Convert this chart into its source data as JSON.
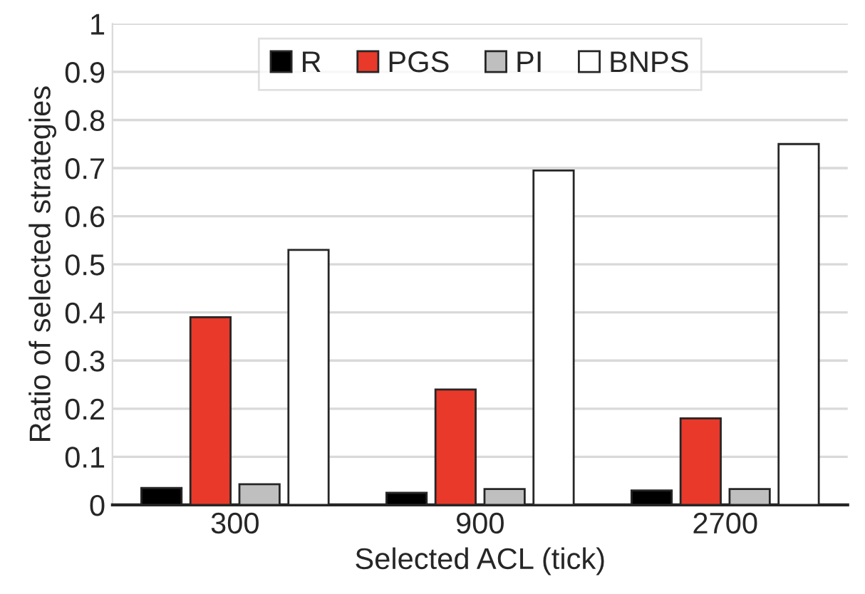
{
  "chart_data": {
    "type": "bar",
    "xlabel": "Selected ACL (tick)",
    "ylabel": "Ratio of selected strategies",
    "categories": [
      "300",
      "900",
      "2700"
    ],
    "series": [
      {
        "name": "R",
        "color": "#000000",
        "values": [
          0.035,
          0.025,
          0.03
        ]
      },
      {
        "name": "PGS",
        "color": "#e8392a",
        "values": [
          0.39,
          0.24,
          0.18
        ]
      },
      {
        "name": "PI",
        "color": "#bfbfbf",
        "values": [
          0.043,
          0.033,
          0.033
        ]
      },
      {
        "name": "BNPS",
        "color": "#ffffff",
        "values": [
          0.53,
          0.695,
          0.75
        ]
      }
    ],
    "ylim": [
      0,
      1
    ],
    "yticks": [
      0,
      0.1,
      0.2,
      0.3,
      0.4,
      0.5,
      0.6,
      0.7,
      0.8,
      0.9,
      1
    ],
    "grid": "y",
    "legend": "top"
  }
}
